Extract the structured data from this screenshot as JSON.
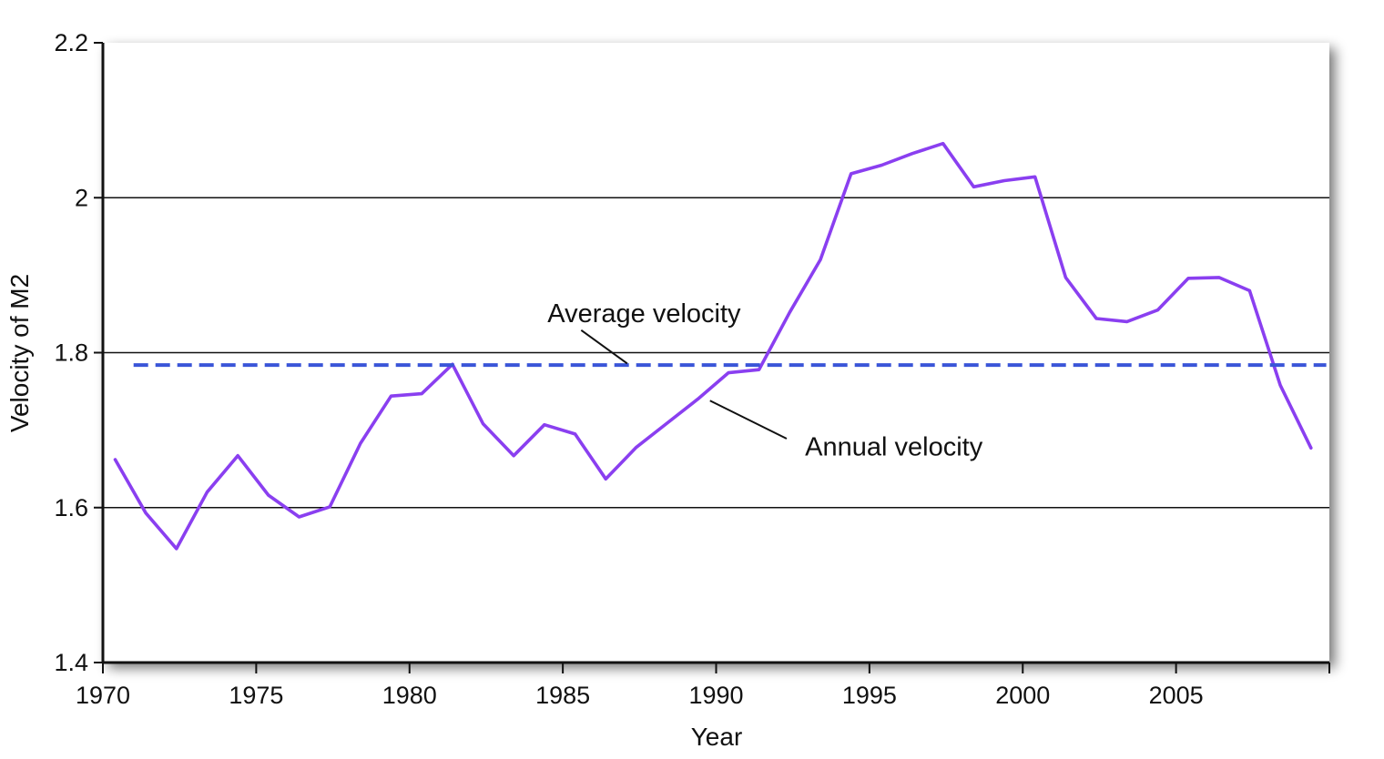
{
  "chart_data": {
    "type": "line",
    "title": "",
    "xlabel": "Year",
    "ylabel": "Velocity of M2",
    "xlim": [
      1970,
      2010
    ],
    "ylim": [
      1.4,
      2.2
    ],
    "x_ticks": [
      1970,
      1975,
      1980,
      1985,
      1990,
      1995,
      2000,
      2005
    ],
    "x_tick_labels": [
      "1970",
      "1975",
      "1980",
      "1985",
      "1990",
      "1995",
      "2000",
      "2005"
    ],
    "y_ticks": [
      1.4,
      1.6,
      1.8,
      2,
      2.2
    ],
    "y_tick_labels": [
      "1.4",
      "1.6",
      "1.8",
      "2",
      "2.2"
    ],
    "gridlines_y": [
      1.6,
      1.8,
      2.0
    ],
    "series": [
      {
        "role": "annual",
        "color": "#8a3ff0",
        "style": "solid",
        "x": [
          1970.4,
          1971.4,
          1972.4,
          1973.4,
          1974.4,
          1975.4,
          1976.4,
          1977.4,
          1978.4,
          1979.4,
          1980.4,
          1981.4,
          1982.4,
          1983.4,
          1984.4,
          1985.4,
          1986.4,
          1987.4,
          1988.4,
          1989.4,
          1990.4,
          1991.4,
          1992.4,
          1993.4,
          1994.4,
          1995.4,
          1996.4,
          1997.4,
          1998.4,
          1999.4,
          2000.4,
          2001.4,
          2002.4,
          2003.4,
          2004.4,
          2005.4,
          2006.4,
          2007.4,
          2008.4,
          2009.4
        ],
        "values": [
          1.662,
          1.593,
          1.547,
          1.62,
          1.667,
          1.616,
          1.588,
          1.601,
          1.683,
          1.744,
          1.747,
          1.785,
          1.708,
          1.667,
          1.707,
          1.695,
          1.637,
          1.678,
          1.709,
          1.74,
          1.774,
          1.778,
          1.852,
          1.92,
          2.031,
          2.042,
          2.057,
          2.07,
          2.014,
          2.022,
          2.027,
          1.897,
          1.844,
          1.84,
          1.855,
          1.896,
          1.897,
          1.88,
          1.758,
          1.677
        ]
      },
      {
        "role": "average",
        "color": "#3a55d8",
        "style": "dashed",
        "x": [
          1971.0,
          2009.9
        ],
        "values": [
          1.784,
          1.784
        ]
      }
    ],
    "annotations": [
      {
        "text": "Average velocity",
        "target": "average",
        "text_at": [
          1984.5,
          1.839
        ],
        "arrow_from": [
          1985.6,
          1.827
        ],
        "arrow_to": [
          1987.1,
          1.786
        ]
      },
      {
        "text": "Annual velocity",
        "target": "annual",
        "text_at": [
          1992.9,
          1.665
        ],
        "arrow_from": [
          1992.3,
          1.688
        ],
        "arrow_to": [
          1889.8,
          1.738
        ]
      }
    ],
    "grid": true,
    "legend": "none"
  }
}
